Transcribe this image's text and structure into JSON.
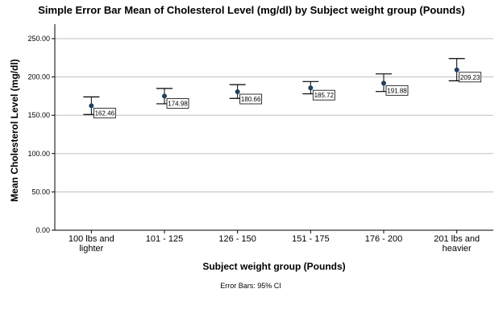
{
  "chart_data": {
    "type": "scatter",
    "title": "Simple Error Bar Mean of Cholesterol Level (mg/dl) by Subject weight group (Pounds)",
    "xlabel": "Subject weight group (Pounds)",
    "ylabel": "Mean Cholesterol Level (mg/dl)",
    "ylim": [
      0,
      250
    ],
    "yticks": [
      0,
      50,
      100,
      150,
      200,
      250
    ],
    "ytick_labels": [
      "0.00",
      "50.00",
      "100.00",
      "150.00",
      "200.00",
      "250.00"
    ],
    "grid": "horizontal",
    "categories": [
      [
        "100 lbs and",
        "lighter"
      ],
      [
        "101 - 125"
      ],
      [
        "126 - 150"
      ],
      [
        "151 - 175"
      ],
      [
        "176 - 200"
      ],
      [
        "201 lbs and",
        "heavier"
      ]
    ],
    "means": [
      162.46,
      174.98,
      180.66,
      185.72,
      191.88,
      209.23
    ],
    "mean_labels": [
      "162.46",
      "174.98",
      "180.66",
      "185.72",
      "191.88",
      "209.23"
    ],
    "ci_lower": [
      151,
      165,
      172,
      178,
      181,
      195
    ],
    "ci_upper": [
      174,
      185,
      190,
      194,
      204,
      224
    ],
    "error_bar_note": "Error Bars: 95% CI",
    "colors": {
      "point": "#1f3f5f",
      "grid": "#bfbfbf",
      "axis": "#000000"
    }
  }
}
